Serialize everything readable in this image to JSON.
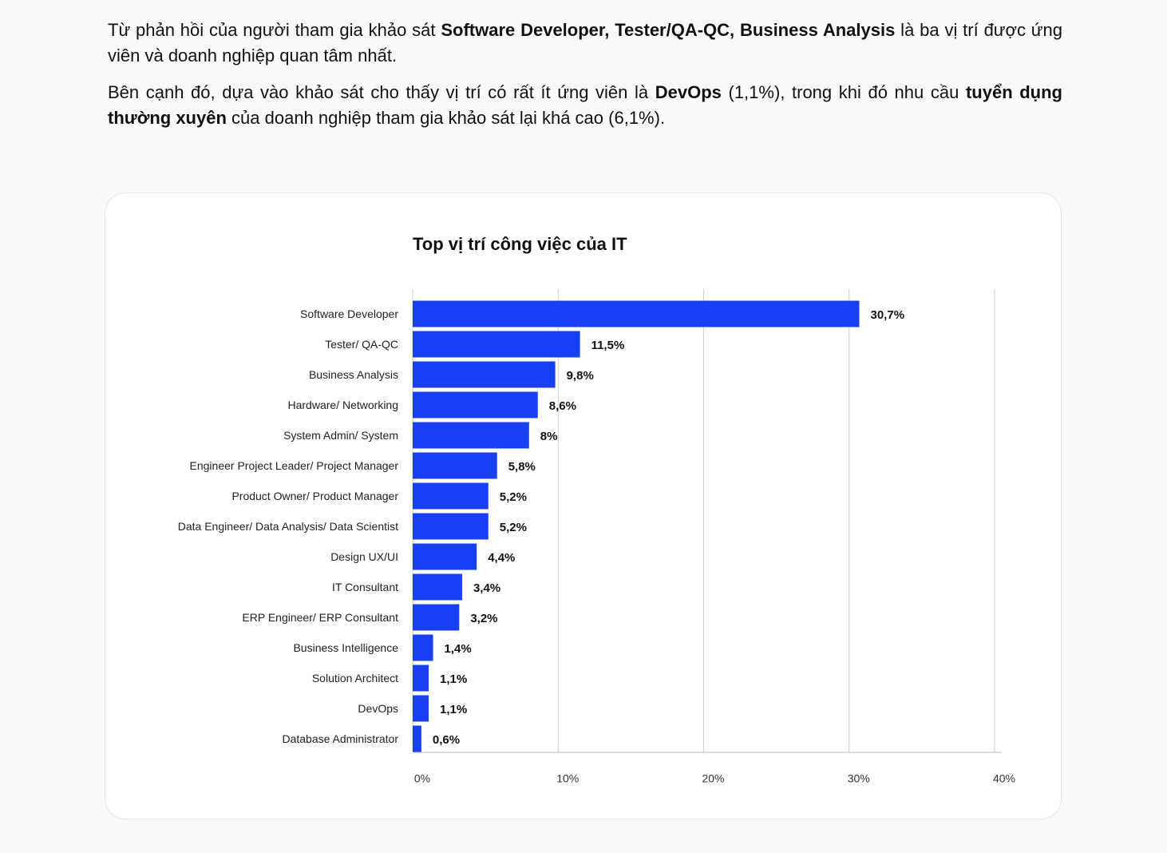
{
  "paragraphs": [
    [
      "Từ phản hồi của người tham gia khảo sát ",
      "Software Developer, Tester/QA-QC, Business Analysis",
      " là ba vị trí được ứng viên và doanh nghiệp quan tâm nhất."
    ],
    [
      "Bên cạnh đó, dựa vào khảo sát cho thấy vị trí có rất ít ứng viên là ",
      "DevOps",
      " (1,1%), trong khi đó nhu cầu ",
      "tuyển dụng thường xuyên",
      " của doanh nghiệp tham gia khảo sát lại khá cao (6,1%)."
    ]
  ],
  "chart_data": {
    "type": "barh",
    "title": "Top vị trí công việc của IT",
    "categories": [
      "Software Developer",
      "Tester/ QA-QC",
      "Business Analysis",
      "Hardware/ Networking",
      "System Admin/ System",
      "Engineer Project Leader/ Project Manager",
      "Product Owner/ Product Manager",
      "Data Engineer/ Data Analysis/ Data Scientist",
      "Design UX/UI",
      "IT Consultant",
      "ERP Engineer/ ERP Consultant",
      "Business Intelligence",
      "Solution Architect",
      "DevOps",
      "Database Administrator"
    ],
    "values": [
      30.7,
      11.5,
      9.8,
      8.6,
      8,
      5.8,
      5.2,
      5.2,
      4.4,
      3.4,
      3.2,
      1.4,
      1.1,
      1.1,
      0.6
    ],
    "value_labels": [
      "30,7%",
      "11,5%",
      "9,8%",
      "8,6%",
      "8%",
      "5,8%",
      "5,2%",
      "5,2%",
      "4,4%",
      "3,4%",
      "3,2%",
      "1,4%",
      "1,1%",
      "1,1%",
      "0,6%"
    ],
    "color": "#1740f5",
    "xlim": [
      0,
      40
    ],
    "xticks": [
      {
        "value": 0,
        "label": "0%"
      },
      {
        "value": 10,
        "label": "10%"
      },
      {
        "value": 20,
        "label": "20%"
      },
      {
        "value": 30,
        "label": "30%"
      },
      {
        "value": 40,
        "label": "40%"
      }
    ],
    "grid": true
  }
}
